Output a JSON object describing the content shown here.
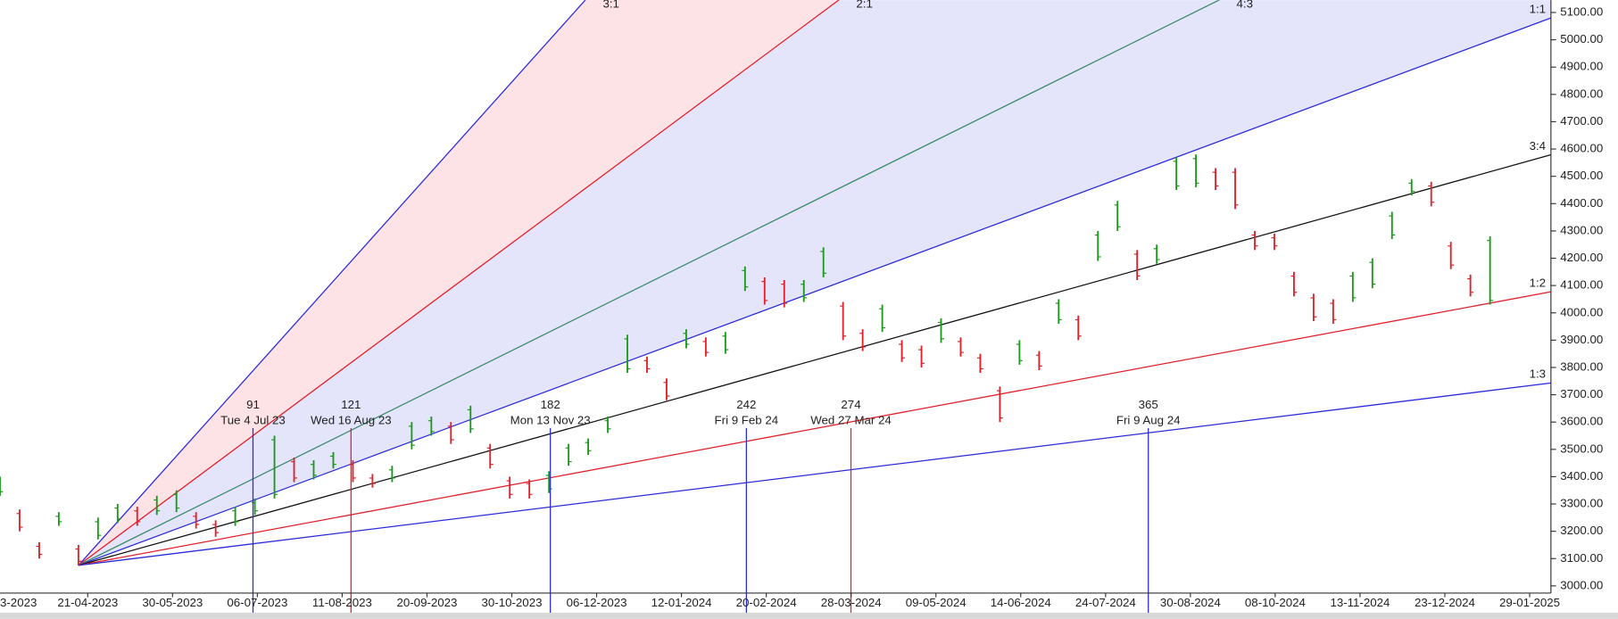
{
  "chart_data": {
    "type": "ohlc",
    "x_tick_labels": [
      "3-2023",
      "21-04-2023",
      "30-05-2023",
      "06-07-2023",
      "11-08-2023",
      "20-09-2023",
      "30-10-2023",
      "06-12-2023",
      "12-01-2024",
      "20-02-2024",
      "28-03-2024",
      "09-05-2024",
      "14-06-2024",
      "24-07-2024",
      "30-08-2024",
      "08-10-2024",
      "13-11-2024",
      "23-12-2024",
      "29-01-2025"
    ],
    "high": [
      3400,
      3280,
      3160,
      3270,
      3150,
      3250,
      3300,
      3290,
      3330,
      3350,
      3270,
      3240,
      3290,
      3320,
      3550,
      3470,
      3460,
      3490,
      3460,
      3410,
      3440,
      3600,
      3620,
      3600,
      3660,
      3520,
      3400,
      3390,
      3420,
      3520,
      3540,
      3620,
      3920,
      3840,
      3760,
      3940,
      3910,
      3930,
      4170,
      4130,
      4120,
      4120,
      4240,
      4040,
      3940,
      4030,
      3900,
      3880,
      3980,
      3910,
      3850,
      3730,
      3900,
      3860,
      4050,
      3990,
      4300,
      4410,
      4230,
      4250,
      4570,
      4580,
      4530,
      4530,
      4300,
      4290,
      4150,
      4070,
      4050,
      4150,
      4200,
      4370,
      4490,
      4480,
      4260,
      4140,
      4280
    ],
    "low": [
      3330,
      3200,
      3100,
      3220,
      3075,
      3170,
      3230,
      3220,
      3260,
      3270,
      3210,
      3180,
      3220,
      3260,
      3320,
      3380,
      3390,
      3430,
      3380,
      3360,
      3380,
      3500,
      3550,
      3520,
      3560,
      3430,
      3320,
      3320,
      3340,
      3440,
      3480,
      3560,
      3780,
      3780,
      3680,
      3870,
      3840,
      3850,
      4080,
      4030,
      4020,
      4040,
      4130,
      3900,
      3860,
      3930,
      3820,
      3800,
      3890,
      3840,
      3780,
      3600,
      3810,
      3790,
      3960,
      3900,
      4190,
      4300,
      4120,
      4180,
      4450,
      4460,
      4450,
      4380,
      4230,
      4230,
      4060,
      3970,
      3960,
      4040,
      4090,
      4270,
      4430,
      4390,
      4160,
      4060,
      4030
    ],
    "up_color": "#1a9a1a",
    "down_color": "#e0202a",
    "ylim": [
      3000,
      5100
    ],
    "yticks": [
      {
        "value": 3000,
        "label": "3000.00"
      },
      {
        "value": 3100,
        "label": "3100.00"
      },
      {
        "value": 3200,
        "label": "3200.00"
      },
      {
        "value": 3300,
        "label": "3300.00"
      },
      {
        "value": 3400,
        "label": "3400.00"
      },
      {
        "value": 3500,
        "label": "3500.00"
      },
      {
        "value": 3600,
        "label": "3600.00"
      },
      {
        "value": 3700,
        "label": "3700.00"
      },
      {
        "value": 3800,
        "label": "3800.00"
      },
      {
        "value": 3900,
        "label": "3900.00"
      },
      {
        "value": 4000,
        "label": "4000.00"
      },
      {
        "value": 4100,
        "label": "4100.00"
      },
      {
        "value": 4200,
        "label": "4200.00"
      },
      {
        "value": 4300,
        "label": "4300.00"
      },
      {
        "value": 4400,
        "label": "4400.00"
      },
      {
        "value": 4500,
        "label": "4500.00"
      },
      {
        "value": 4600,
        "label": "4600.00"
      },
      {
        "value": 4700,
        "label": "4700.00"
      },
      {
        "value": 4800,
        "label": "4800.00"
      },
      {
        "value": 4900,
        "label": "4900.00"
      },
      {
        "value": 5000,
        "label": "5000.00"
      },
      {
        "value": 5100,
        "label": "5100.00"
      }
    ],
    "fan": [
      {
        "label": "3:1",
        "end": 9090,
        "color": "#2b2bd8",
        "fill": "#fde2e6"
      },
      {
        "label": "2:1",
        "end": 7085,
        "color": "#e0202a",
        "fill": "#e4e4fb"
      },
      {
        "label": "4:3",
        "end": 5748,
        "color": "#3a8a6a",
        "fill": "#e4e4fb"
      },
      {
        "label": "1:1",
        "end": 5080,
        "color": "#2b2bd8"
      },
      {
        "label": "3:4",
        "end": 4579,
        "color": "#111111"
      },
      {
        "label": "1:2",
        "end": 4077,
        "color": "#e0202a"
      },
      {
        "label": "1:3",
        "end": 3743,
        "color": "#2b2bd8"
      }
    ],
    "cycles": [
      {
        "count": 91,
        "date": "Tue 4 Jul 23",
        "color": "#2b2bd8"
      },
      {
        "count": 121,
        "date": "Wed 16 Aug 23",
        "color": "#e0202a"
      },
      {
        "count": 182,
        "date": "Mon 13 Nov 23",
        "color": "#2b2bd8"
      },
      {
        "count": 242,
        "date": "Fri 9 Feb 24",
        "color": "#2b2bd8"
      },
      {
        "count": 274,
        "date": "Wed 27 Mar 24",
        "color": "#e0202a"
      },
      {
        "count": 365,
        "date": "Fri 9 Aug 24",
        "color": "#2b2bd8"
      }
    ]
  }
}
